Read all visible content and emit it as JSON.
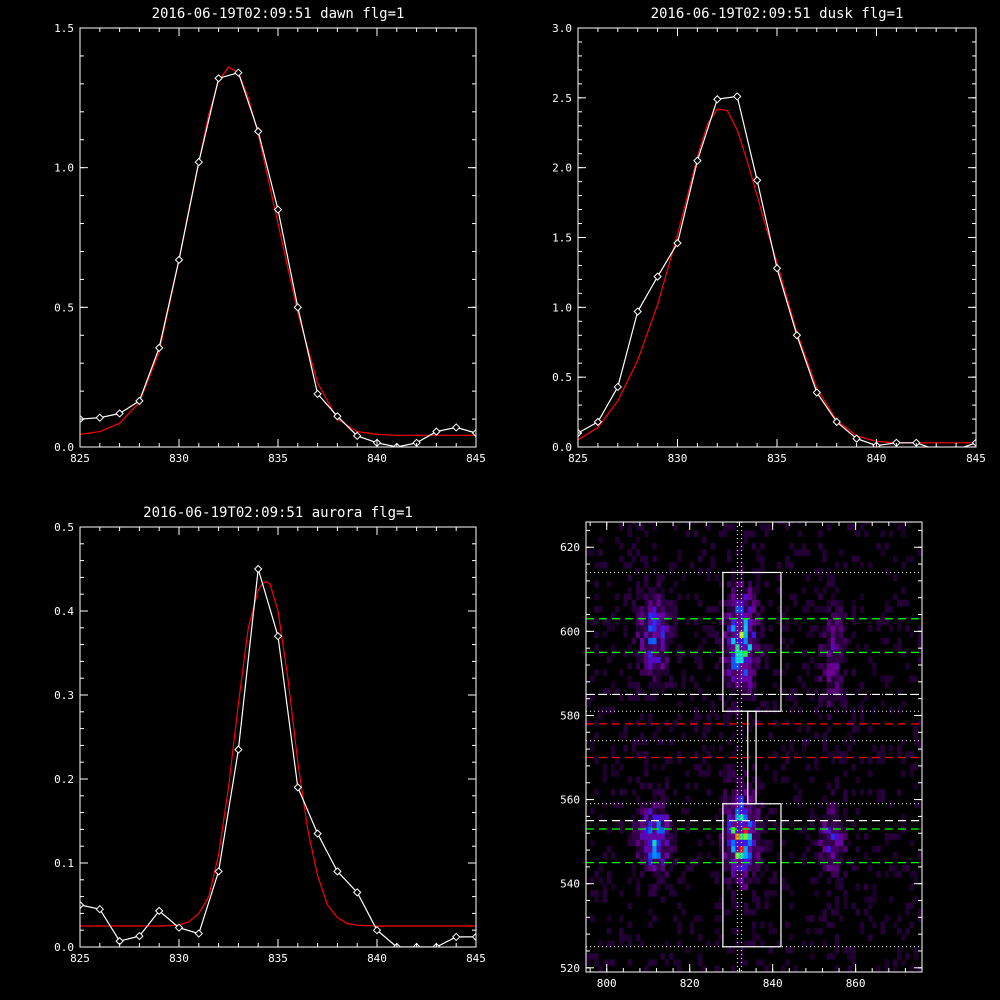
{
  "chart_data": [
    {
      "type": "line",
      "title": "2016-06-19T02:09:51 dawn flg=1",
      "xlim": [
        825,
        845
      ],
      "ylim": [
        0,
        1.5
      ],
      "xticks": [
        "825",
        "830",
        "835",
        "840",
        "845"
      ],
      "yticks": [
        "0.0",
        "0.5",
        "1.0",
        "1.5"
      ],
      "series": [
        {
          "color": "#ffffff",
          "markers": "diamond",
          "x": [
            825,
            826,
            827,
            828,
            829,
            830,
            831,
            832,
            833,
            834,
            835,
            836,
            837,
            838,
            839,
            840,
            841,
            842,
            843,
            844,
            845
          ],
          "y": [
            0.1,
            0.105,
            0.12,
            0.165,
            0.355,
            0.67,
            1.02,
            1.32,
            1.34,
            1.13,
            0.85,
            0.5,
            0.19,
            0.11,
            0.04,
            0.015,
            0.0,
            0.015,
            0.055,
            0.07,
            0.05
          ]
        },
        {
          "color": "#ff0000",
          "markers": "none",
          "x": [
            825,
            826,
            827,
            828,
            829,
            830,
            830.5,
            831,
            831.5,
            832,
            832.5,
            833,
            833.5,
            834,
            834.5,
            835,
            836,
            837,
            838,
            839,
            840,
            841,
            842,
            843,
            844,
            845
          ],
          "y": [
            0.045,
            0.055,
            0.085,
            0.16,
            0.34,
            0.67,
            0.85,
            1.02,
            1.19,
            1.31,
            1.36,
            1.34,
            1.25,
            1.12,
            0.96,
            0.8,
            0.48,
            0.23,
            0.1,
            0.055,
            0.045,
            0.042,
            0.042,
            0.042,
            0.042,
            0.042
          ]
        }
      ]
    },
    {
      "type": "line",
      "title": "2016-06-19T02:09:51 dusk flg=1",
      "xlim": [
        825,
        845
      ],
      "ylim": [
        0,
        3.0
      ],
      "xticks": [
        "825",
        "830",
        "835",
        "840",
        "845"
      ],
      "yticks": [
        "0.0",
        "0.5",
        "1.0",
        "1.5",
        "2.0",
        "2.5",
        "3.0"
      ],
      "series": [
        {
          "color": "#ffffff",
          "markers": "diamond",
          "x": [
            825,
            826,
            827,
            828,
            829,
            830,
            831,
            832,
            833,
            834,
            835,
            836,
            837,
            838,
            839,
            840,
            841,
            842,
            843,
            844,
            845
          ],
          "y": [
            0.1,
            0.18,
            0.43,
            0.97,
            1.22,
            1.46,
            2.05,
            2.49,
            2.51,
            1.91,
            1.28,
            0.8,
            0.39,
            0.18,
            0.06,
            0.01,
            0.03,
            0.03,
            -0.02,
            -0.02,
            0.03
          ]
        },
        {
          "color": "#ff0000",
          "markers": "none",
          "x": [
            825,
            826,
            827,
            828,
            829,
            830,
            830.5,
            831,
            831.5,
            832,
            832.5,
            833,
            833.5,
            834,
            834.5,
            835,
            836,
            837,
            838,
            839,
            840,
            841,
            842,
            843,
            844,
            845
          ],
          "y": [
            0.05,
            0.14,
            0.33,
            0.62,
            1.02,
            1.52,
            1.8,
            2.08,
            2.31,
            2.42,
            2.41,
            2.27,
            2.05,
            1.8,
            1.55,
            1.32,
            0.82,
            0.42,
            0.19,
            0.08,
            0.04,
            0.03,
            0.03,
            0.03,
            0.03,
            0.03
          ]
        }
      ]
    },
    {
      "type": "line",
      "title": "2016-06-19T02:09:51 aurora flg=1",
      "xlim": [
        825,
        845
      ],
      "ylim": [
        0,
        0.5
      ],
      "xticks": [
        "825",
        "830",
        "835",
        "840",
        "845"
      ],
      "yticks": [
        "0.0",
        "0.1",
        "0.2",
        "0.3",
        "0.4",
        "0.5"
      ],
      "series": [
        {
          "color": "#ffffff",
          "markers": "diamond",
          "x": [
            825,
            826,
            827,
            828,
            829,
            830,
            831,
            832,
            833,
            834,
            835,
            836,
            837,
            838,
            839,
            840,
            841,
            842,
            843,
            844,
            845
          ],
          "y": [
            0.05,
            0.045,
            0.007,
            0.013,
            0.043,
            0.023,
            0.016,
            0.09,
            0.235,
            0.45,
            0.37,
            0.19,
            0.135,
            0.09,
            0.065,
            0.02,
            0.0,
            0.0,
            0.0,
            0.012,
            0.012
          ]
        },
        {
          "color": "#ff0000",
          "markers": "none",
          "x": [
            825,
            826,
            827,
            828,
            829,
            830,
            830.5,
            831,
            831.5,
            832,
            832.5,
            833,
            833.5,
            834,
            834.2,
            834.4,
            834.6,
            835,
            835.5,
            836,
            836.5,
            837,
            837.5,
            838,
            838.5,
            839,
            840,
            841,
            842,
            843,
            844,
            845
          ],
          "y": [
            0.025,
            0.025,
            0.025,
            0.025,
            0.025,
            0.026,
            0.03,
            0.04,
            0.06,
            0.11,
            0.19,
            0.29,
            0.38,
            0.425,
            0.432,
            0.435,
            0.432,
            0.4,
            0.32,
            0.22,
            0.14,
            0.085,
            0.05,
            0.035,
            0.028,
            0.026,
            0.025,
            0.025,
            0.025,
            0.025,
            0.025,
            0.025
          ]
        }
      ]
    },
    {
      "type": "heatmap",
      "title": "",
      "xlim": [
        795,
        876
      ],
      "ylim": [
        519,
        626
      ],
      "xticks": [
        "800",
        "820",
        "840",
        "860"
      ],
      "yticks": [
        "520",
        "540",
        "560",
        "580",
        "600",
        "620"
      ],
      "vertical_dotted_line_x": 832,
      "vertical_dotted_lines_x": [
        831.5,
        832.5
      ],
      "horizontal_dotted_lines_y": [
        614,
        585,
        581,
        574,
        559,
        525
      ],
      "green_dashed_y": [
        603,
        595,
        553,
        545
      ],
      "white_dashed_y": [
        585,
        555
      ],
      "red_dashed_y": [
        578,
        570
      ],
      "boxes": [
        {
          "x0": 828,
          "x1": 842,
          "y0": 581,
          "y1": 614
        },
        {
          "x0": 828,
          "x1": 842,
          "y0": 525,
          "y1": 559
        },
        {
          "x0": 834,
          "x1": 836,
          "y0": 559,
          "y1": 581
        }
      ],
      "blobs": [
        {
          "x": 811,
          "y": 598,
          "sx": 2.2,
          "sy": 6,
          "amp": 0.48
        },
        {
          "x": 832,
          "y": 597,
          "sx": 2.2,
          "sy": 7,
          "amp": 0.78
        },
        {
          "x": 854,
          "y": 593,
          "sx": 2.0,
          "sy": 8,
          "amp": 0.22
        },
        {
          "x": 811,
          "y": 550,
          "sx": 2.2,
          "sy": 5,
          "amp": 0.62
        },
        {
          "x": 832,
          "y": 551,
          "sx": 2.2,
          "sy": 6,
          "amp": 1.0
        },
        {
          "x": 854,
          "y": 550,
          "sx": 2.0,
          "sy": 5,
          "amp": 0.35
        }
      ]
    }
  ]
}
